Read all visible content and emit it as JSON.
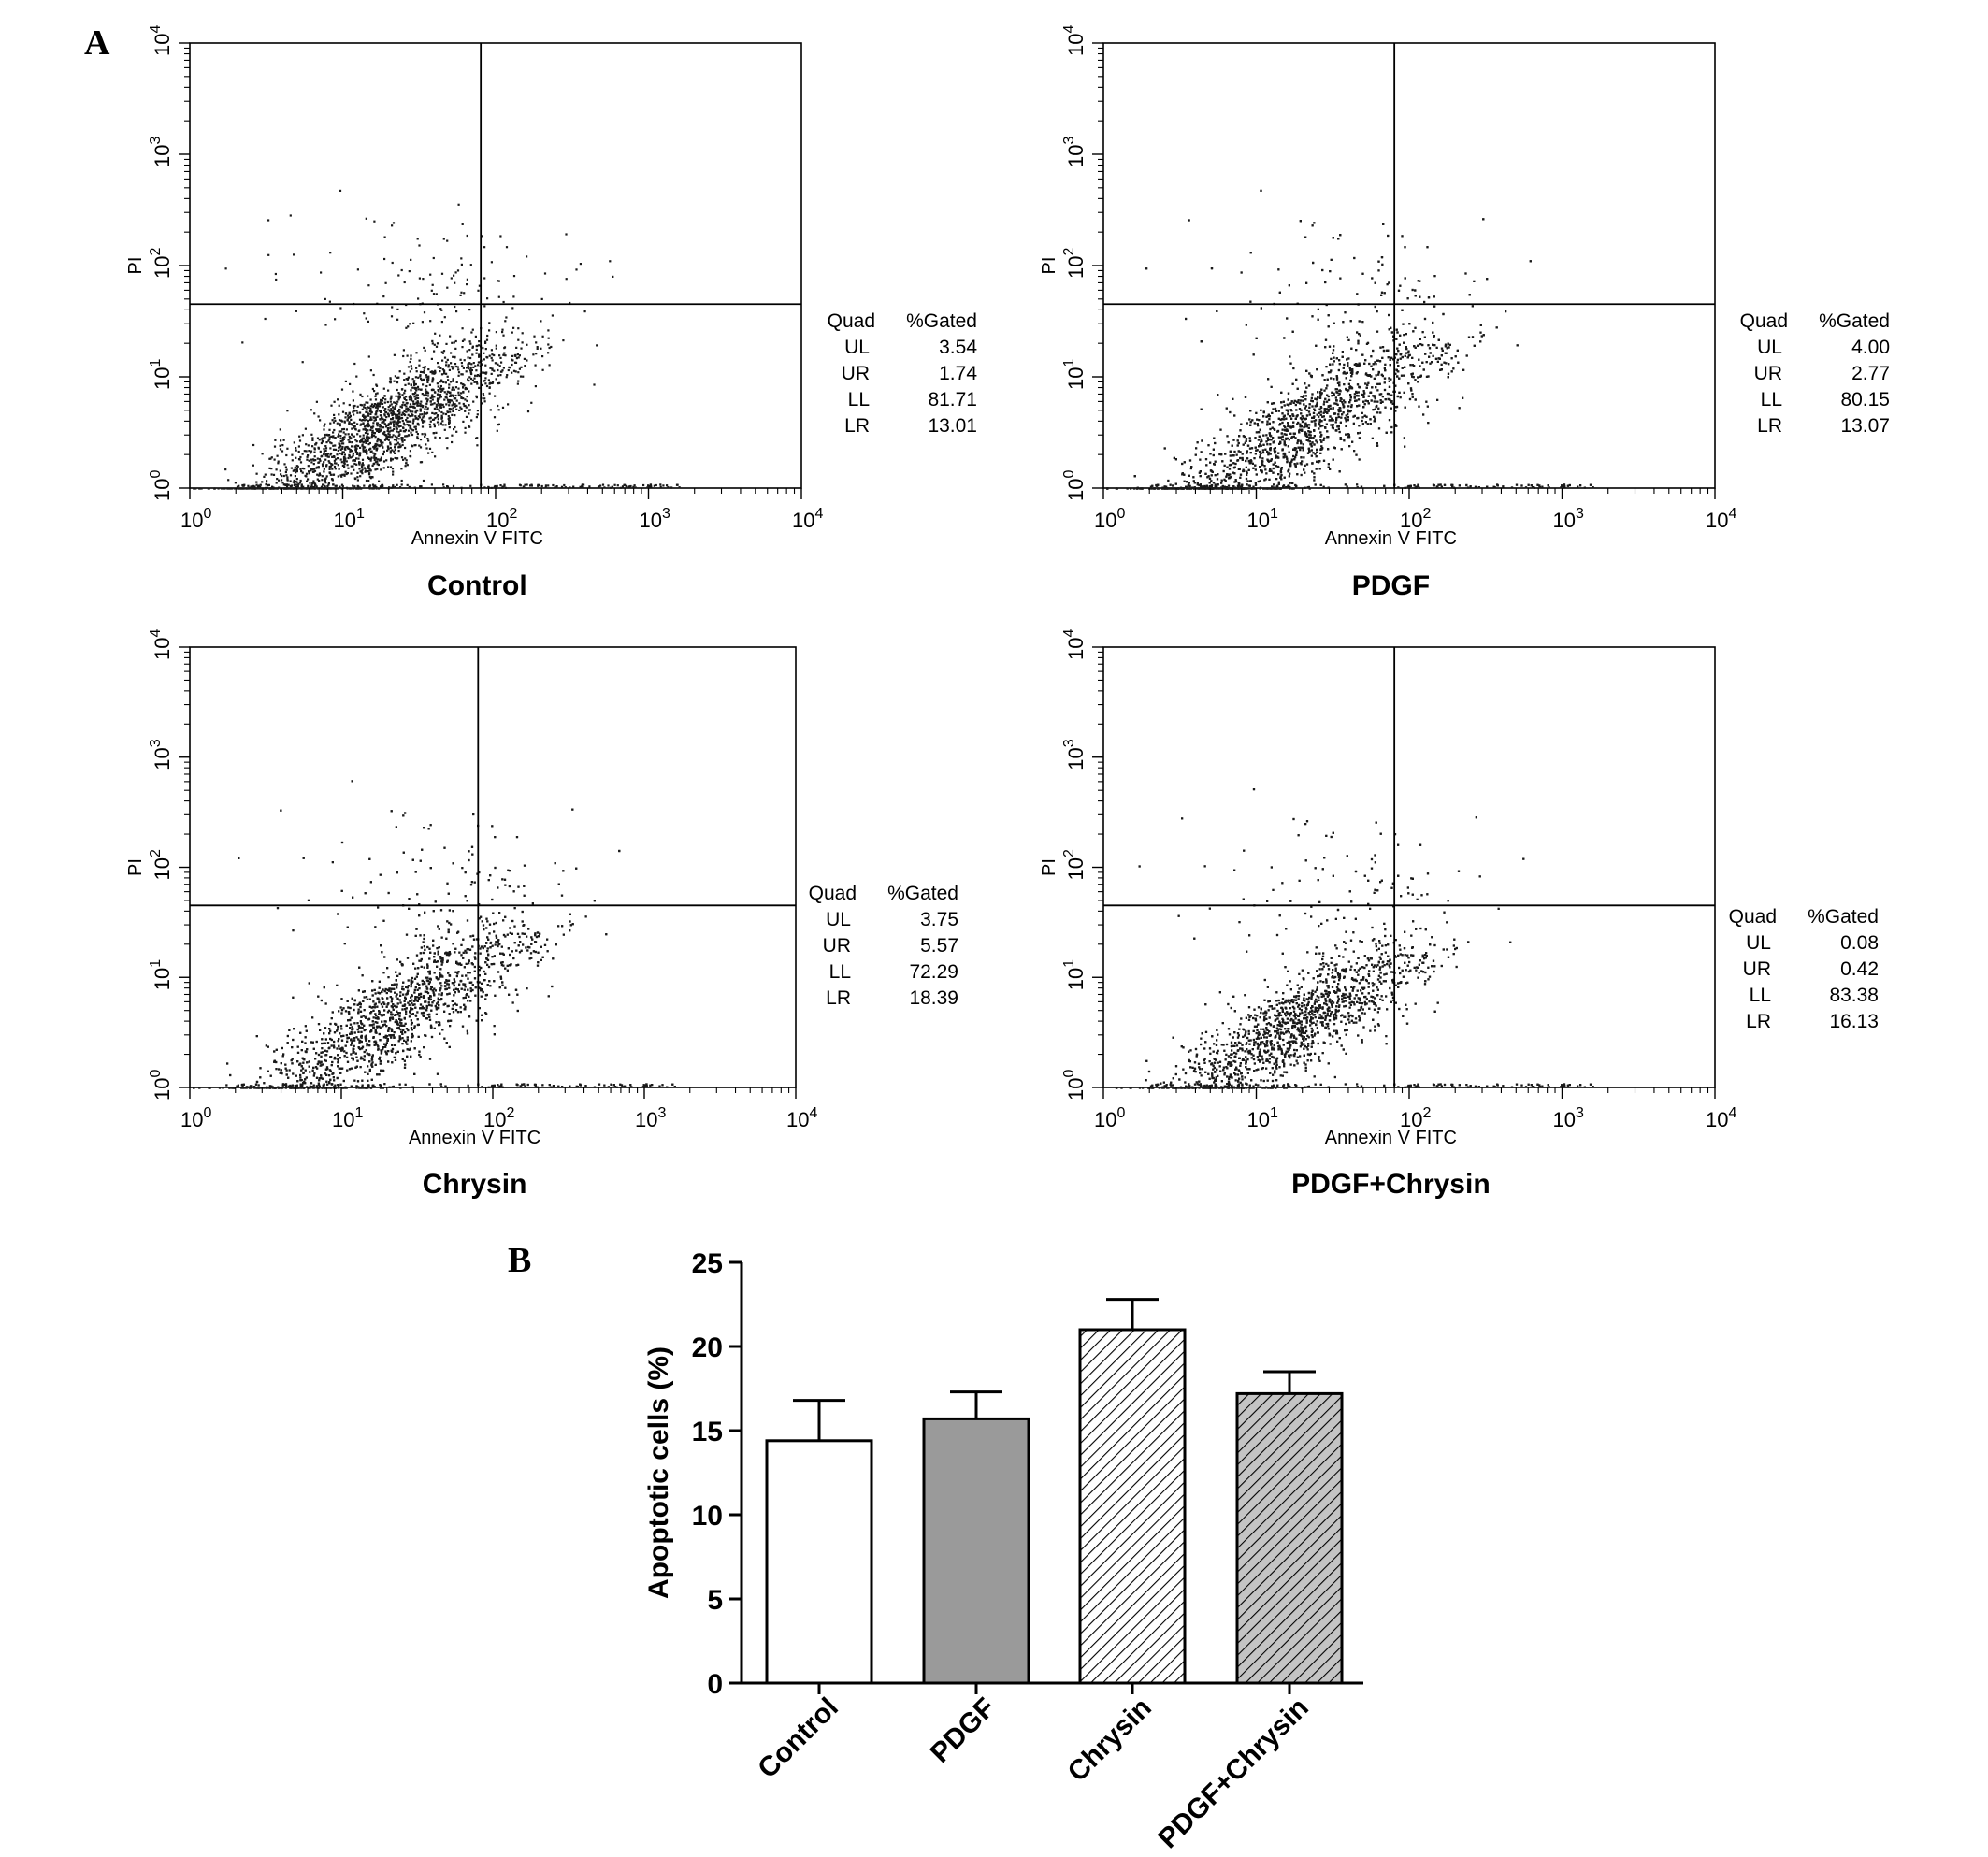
{
  "panel_a_label": "A",
  "panel_b_label": "B",
  "chart_data": [
    {
      "type": "scatter",
      "title": "Control",
      "xlabel": "Annexin V FITC",
      "ylabel": "PI",
      "xscale": "log",
      "yscale": "log",
      "xlim": [
        1,
        10000
      ],
      "ylim": [
        1,
        10000
      ],
      "x_ticks": [
        "10^0",
        "10^1",
        "10^2",
        "10^3",
        "10^4"
      ],
      "y_ticks": [
        "10^0",
        "10^1",
        "10^2",
        "10^3",
        "10^4"
      ],
      "quadrant_gate": {
        "x": 80,
        "y": 45
      },
      "quadrant_stats": {
        "header": [
          "Quad",
          "%Gated"
        ],
        "rows": [
          {
            "quad": "UL",
            "gated": "3.54"
          },
          {
            "quad": "UR",
            "gated": "1.74"
          },
          {
            "quad": "LL",
            "gated": "81.71"
          },
          {
            "quad": "LR",
            "gated": "13.01"
          }
        ]
      },
      "cloud": {
        "center_x": 18,
        "center_y": 3.5,
        "spread_x": 0.42,
        "spread_y": 0.4,
        "tilt": 0.75,
        "points": 2300
      }
    },
    {
      "type": "scatter",
      "title": "PDGF",
      "xlabel": "Annexin V FITC",
      "ylabel": "PI",
      "xscale": "log",
      "yscale": "log",
      "xlim": [
        1,
        10000
      ],
      "ylim": [
        1,
        10000
      ],
      "x_ticks": [
        "10^0",
        "10^1",
        "10^2",
        "10^3",
        "10^4"
      ],
      "y_ticks": [
        "10^0",
        "10^1",
        "10^2",
        "10^3",
        "10^4"
      ],
      "quadrant_gate": {
        "x": 80,
        "y": 45
      },
      "quadrant_stats": {
        "header": [
          "Quad",
          "%Gated"
        ],
        "rows": [
          {
            "quad": "UL",
            "gated": "4.00"
          },
          {
            "quad": "UR",
            "gated": "2.77"
          },
          {
            "quad": "LL",
            "gated": "80.15"
          },
          {
            "quad": "LR",
            "gated": "13.07"
          }
        ]
      },
      "cloud": {
        "center_x": 20,
        "center_y": 3.5,
        "spread_x": 0.45,
        "spread_y": 0.45,
        "tilt": 0.8,
        "points": 3600
      }
    },
    {
      "type": "scatter",
      "title": "Chrysin",
      "xlabel": "Annexin V FITC",
      "ylabel": "PI",
      "xscale": "log",
      "yscale": "log",
      "xlim": [
        1,
        10000
      ],
      "ylim": [
        1,
        10000
      ],
      "x_ticks": [
        "10^0",
        "10^1",
        "10^2",
        "10^3",
        "10^4"
      ],
      "y_ticks": [
        "10^0",
        "10^1",
        "10^2",
        "10^3",
        "10^4"
      ],
      "quadrant_gate": {
        "x": 80,
        "y": 45
      },
      "quadrant_stats": {
        "header": [
          "Quad",
          "%Gated"
        ],
        "rows": [
          {
            "quad": "UL",
            "gated": "3.75"
          },
          {
            "quad": "UR",
            "gated": "5.57"
          },
          {
            "quad": "LL",
            "gated": "72.29"
          },
          {
            "quad": "LR",
            "gated": "18.39"
          }
        ]
      },
      "cloud": {
        "center_x": 22,
        "center_y": 4.5,
        "spread_x": 0.45,
        "spread_y": 0.45,
        "tilt": 0.8,
        "points": 3400
      }
    },
    {
      "type": "scatter",
      "title": "PDGF+Chrysin",
      "xlabel": "Annexin V FITC",
      "ylabel": "PI",
      "xscale": "log",
      "yscale": "log",
      "xlim": [
        1,
        10000
      ],
      "ylim": [
        1,
        10000
      ],
      "x_ticks": [
        "10^0",
        "10^1",
        "10^2",
        "10^3",
        "10^4"
      ],
      "y_ticks": [
        "10^0",
        "10^1",
        "10^2",
        "10^3",
        "10^4"
      ],
      "quadrant_gate": {
        "x": 80,
        "y": 45
      },
      "quadrant_stats": {
        "header": [
          "Quad",
          "%Gated"
        ],
        "rows": [
          {
            "quad": "UL",
            "gated": "0.08"
          },
          {
            "quad": "UR",
            "gated": "0.42"
          },
          {
            "quad": "LL",
            "gated": "83.38"
          },
          {
            "quad": "LR",
            "gated": "16.13"
          }
        ]
      },
      "cloud": {
        "center_x": 18,
        "center_y": 3.8,
        "spread_x": 0.4,
        "spread_y": 0.4,
        "tilt": 0.75,
        "points": 3400
      }
    },
    {
      "type": "bar",
      "categories": [
        "Control",
        "PDGF",
        "Chrysin",
        "PDGF+Chrysin"
      ],
      "values": [
        14.4,
        15.7,
        21.0,
        17.2
      ],
      "errors": [
        2.4,
        1.6,
        1.8,
        1.3
      ],
      "fills": [
        "white",
        "gray",
        "hatched",
        "hatched-gray"
      ],
      "xlabel": "",
      "ylabel": "Apoptotic cells (%)",
      "ylim": [
        0,
        25
      ],
      "y_ticks": [
        "0",
        "5",
        "10",
        "15",
        "20",
        "25"
      ]
    }
  ]
}
